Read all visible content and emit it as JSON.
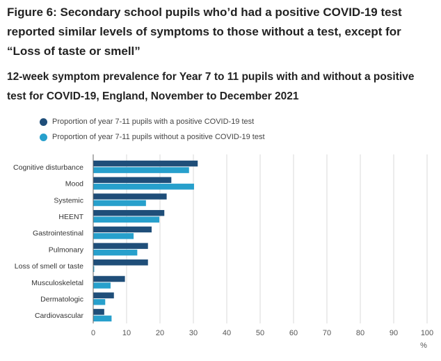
{
  "header": {
    "title": "Figure 6: Secondary school pupils who’d had a positive COVID-19 test reported similar levels of symptoms to those without a test, except for “Loss of taste or smell”",
    "subtitle": "12-week symptom prevalence for Year 7 to 11 pupils with and without a positive test for COVID-19, England, November to December 2021"
  },
  "chart_data": {
    "type": "bar",
    "orientation": "horizontal",
    "categories": [
      "Cognitive disturbance",
      "Mood",
      "Systemic",
      "HEENT",
      "Gastrointestinal",
      "Pulmonary",
      "Loss of smell or taste",
      "Musculoskeletal",
      "Dermatologic",
      "Cardiovascular"
    ],
    "series": [
      {
        "name": "Proportion of year 7-11 pupils with a positive COVID-19 test",
        "color": "#1f4e79",
        "values": [
          31.3,
          23.4,
          22,
          21.3,
          17.5,
          16.4,
          16.4,
          9.5,
          6.2,
          3.3
        ]
      },
      {
        "name": "Proportion of year 7-11 pupils without a positive COVID-19 test",
        "color": "#27a0cc",
        "values": [
          28.7,
          30.2,
          15.8,
          19.8,
          12.1,
          13.2,
          0.3,
          5.2,
          3.6,
          5.5
        ]
      }
    ],
    "xlim": [
      0,
      100
    ],
    "xticks": [
      0,
      10,
      20,
      30,
      40,
      50,
      60,
      70,
      80,
      90,
      100
    ],
    "xunit": "%",
    "grid": true,
    "legend_position": "top-left"
  }
}
